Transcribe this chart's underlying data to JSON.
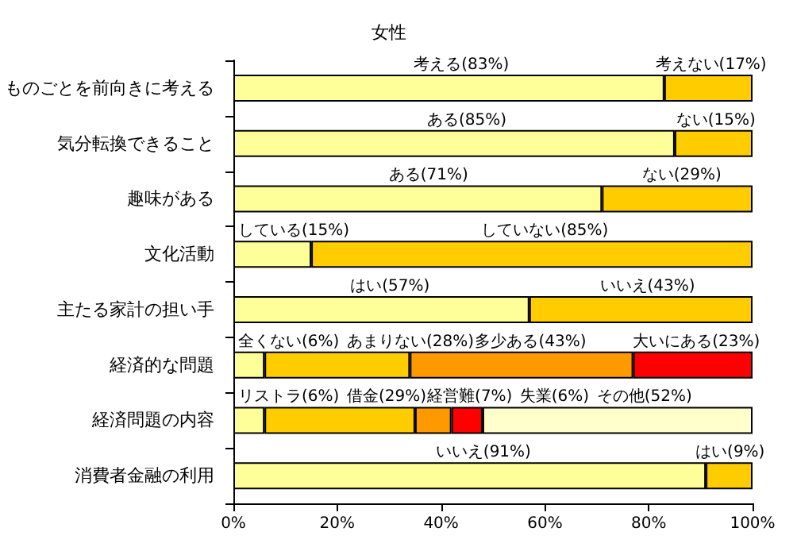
{
  "chart_data": {
    "type": "bar",
    "orientation": "horizontal",
    "stacked": true,
    "title": "女性",
    "categories": [
      "ものごとを前向きに考える",
      "気分転換できること",
      "趣味がある",
      "文化活動",
      "主たる家計の担い手",
      "経済的な問題",
      "経済問題の内容",
      "消費者金融の利用"
    ],
    "series": [
      {
        "color": "#ffff99",
        "values": [
          83,
          85,
          71,
          15,
          57,
          6,
          6,
          91
        ],
        "value_labels": [
          "考える(83%)",
          "ある(85%)",
          "ある(71%)",
          "している(15%)",
          "はい(57%)",
          "全くない(6%)",
          "リストラ(6%)",
          "いいえ(91%)"
        ]
      },
      {
        "color": "#ffcc00",
        "values": [
          17,
          15,
          29,
          85,
          43,
          28,
          29,
          9
        ],
        "value_labels": [
          "考えない(17%)",
          "ない(15%)",
          "ない(29%)",
          "していない(85%)",
          "いいえ(43%)",
          "あまりない(28%)",
          "借金(29%)",
          "はい(9%)"
        ]
      },
      {
        "color": "#ff9900",
        "values": [
          null,
          null,
          null,
          null,
          null,
          43,
          7,
          null
        ],
        "value_labels": [
          null,
          null,
          null,
          null,
          null,
          "多少ある(43%)",
          "経営難(7%)",
          null
        ]
      },
      {
        "color": "#ff0000",
        "values": [
          null,
          null,
          null,
          null,
          null,
          23,
          6,
          null
        ],
        "value_labels": [
          null,
          null,
          null,
          null,
          null,
          "大いにある(23%)",
          "失業(6%)",
          null
        ]
      },
      {
        "color": "#ffffcc",
        "values": [
          null,
          null,
          null,
          null,
          null,
          null,
          52,
          null
        ],
        "value_labels": [
          null,
          null,
          null,
          null,
          null,
          null,
          "その他(52%)",
          null
        ]
      }
    ],
    "xlim": [
      0,
      100
    ],
    "xticks": [
      {
        "value": 0,
        "label": "0%"
      },
      {
        "value": 20,
        "label": "20%"
      },
      {
        "value": 40,
        "label": "40%"
      },
      {
        "value": 60,
        "label": "60%"
      },
      {
        "value": 80,
        "label": "80%"
      },
      {
        "value": 100,
        "label": "100%"
      }
    ],
    "grid": false
  }
}
